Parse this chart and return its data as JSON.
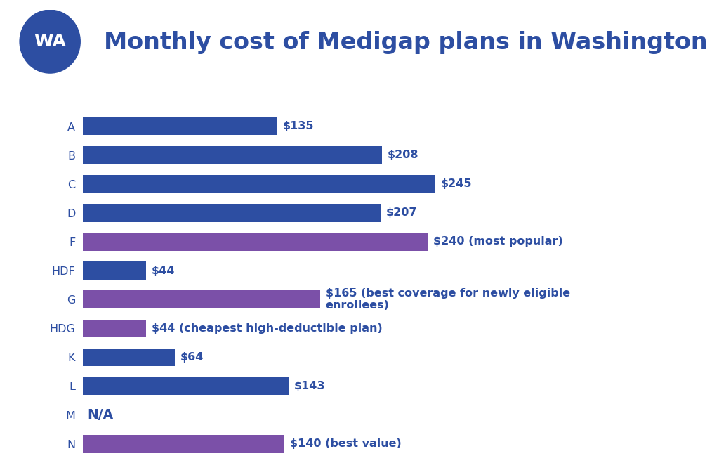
{
  "title": "Monthly cost of Medigap plans in Washington",
  "wa_badge_color": "#2d4ea2",
  "wa_text_color": "#ffffff",
  "background_color": "#ffffff",
  "plans": [
    {
      "label": "A",
      "value": 135,
      "color": "#2d4ea2",
      "annotation": "$135"
    },
    {
      "label": "B",
      "value": 208,
      "color": "#2d4ea2",
      "annotation": "$208"
    },
    {
      "label": "C",
      "value": 245,
      "color": "#2d4ea2",
      "annotation": "$245"
    },
    {
      "label": "D",
      "value": 207,
      "color": "#2d4ea2",
      "annotation": "$207"
    },
    {
      "label": "F",
      "value": 240,
      "color": "#7b50a8",
      "annotation": "$240 (most popular)"
    },
    {
      "label": "HDF",
      "value": 44,
      "color": "#2d4ea2",
      "annotation": "$44"
    },
    {
      "label": "G",
      "value": 165,
      "color": "#7b50a8",
      "annotation": "$165 (best coverage for newly eligible\nenrollees)"
    },
    {
      "label": "HDG",
      "value": 44,
      "color": "#7b50a8",
      "annotation": "$44 (cheapest high-deductible plan)"
    },
    {
      "label": "K",
      "value": 64,
      "color": "#2d4ea2",
      "annotation": "$64"
    },
    {
      "label": "L",
      "value": 143,
      "color": "#2d4ea2",
      "annotation": "$143"
    },
    {
      "label": "M",
      "value": 0,
      "color": "#2d4ea2",
      "annotation": "N/A"
    },
    {
      "label": "N",
      "value": 140,
      "color": "#7b50a8",
      "annotation": "$140 (best value)"
    }
  ],
  "annotation_color": "#2d4ea2",
  "annotation_fontsize": 11.5,
  "label_fontsize": 11.5,
  "title_fontsize": 24,
  "xlim": [
    0,
    310
  ],
  "bar_height": 0.62
}
